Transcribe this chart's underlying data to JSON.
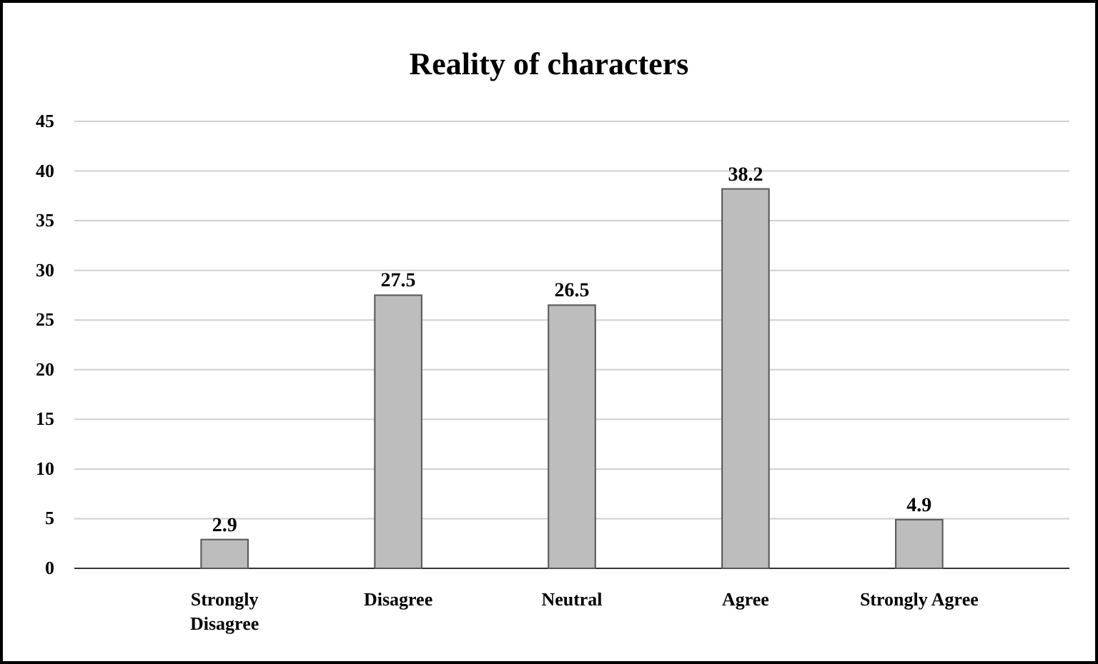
{
  "chart_data": {
    "type": "bar",
    "title": "Reality of characters",
    "categories": [
      "Strongly Disagree",
      "Disagree",
      "Neutral",
      "Agree",
      "Strongly Agree"
    ],
    "values": [
      2.9,
      27.5,
      26.5,
      38.2,
      4.9
    ],
    "color": "#bdbdbd",
    "data_labels": true,
    "ylim": [
      0,
      45
    ],
    "yticks": [
      0,
      5,
      10,
      15,
      20,
      25,
      30,
      35,
      40,
      45
    ],
    "grid": "y"
  }
}
